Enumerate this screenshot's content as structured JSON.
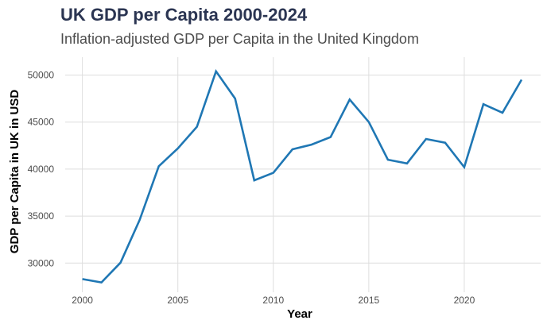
{
  "chart_data": {
    "type": "line",
    "title": "UK GDP per Capita 2000-2024",
    "subtitle": "Inflation-adjusted GDP per Capita in the United Kingdom",
    "xlabel": "Year",
    "ylabel": "GDP per Capita in UK in USD",
    "xlim": [
      1999.1,
      2024.0
    ],
    "ylim": [
      26900,
      51900
    ],
    "xticks": [
      2000,
      2005,
      2010,
      2015,
      2020
    ],
    "yticks": [
      30000,
      35000,
      40000,
      45000,
      50000
    ],
    "grid": true,
    "legend": "none",
    "series": [
      {
        "name": "GDP per Capita",
        "color": "#1f77b4",
        "x": [
          2000,
          2001,
          2002,
          2003,
          2004,
          2005,
          2006,
          2007,
          2008,
          2009,
          2010,
          2011,
          2012,
          2013,
          2014,
          2015,
          2016,
          2017,
          2018,
          2019,
          2020,
          2021,
          2022,
          2023
        ],
        "y": [
          28300,
          27950,
          30050,
          34600,
          40300,
          42200,
          44500,
          50400,
          47500,
          38800,
          39600,
          42100,
          42600,
          43400,
          47400,
          45000,
          41000,
          40600,
          43200,
          42800,
          40200,
          46900,
          46000,
          49500
        ]
      }
    ]
  }
}
